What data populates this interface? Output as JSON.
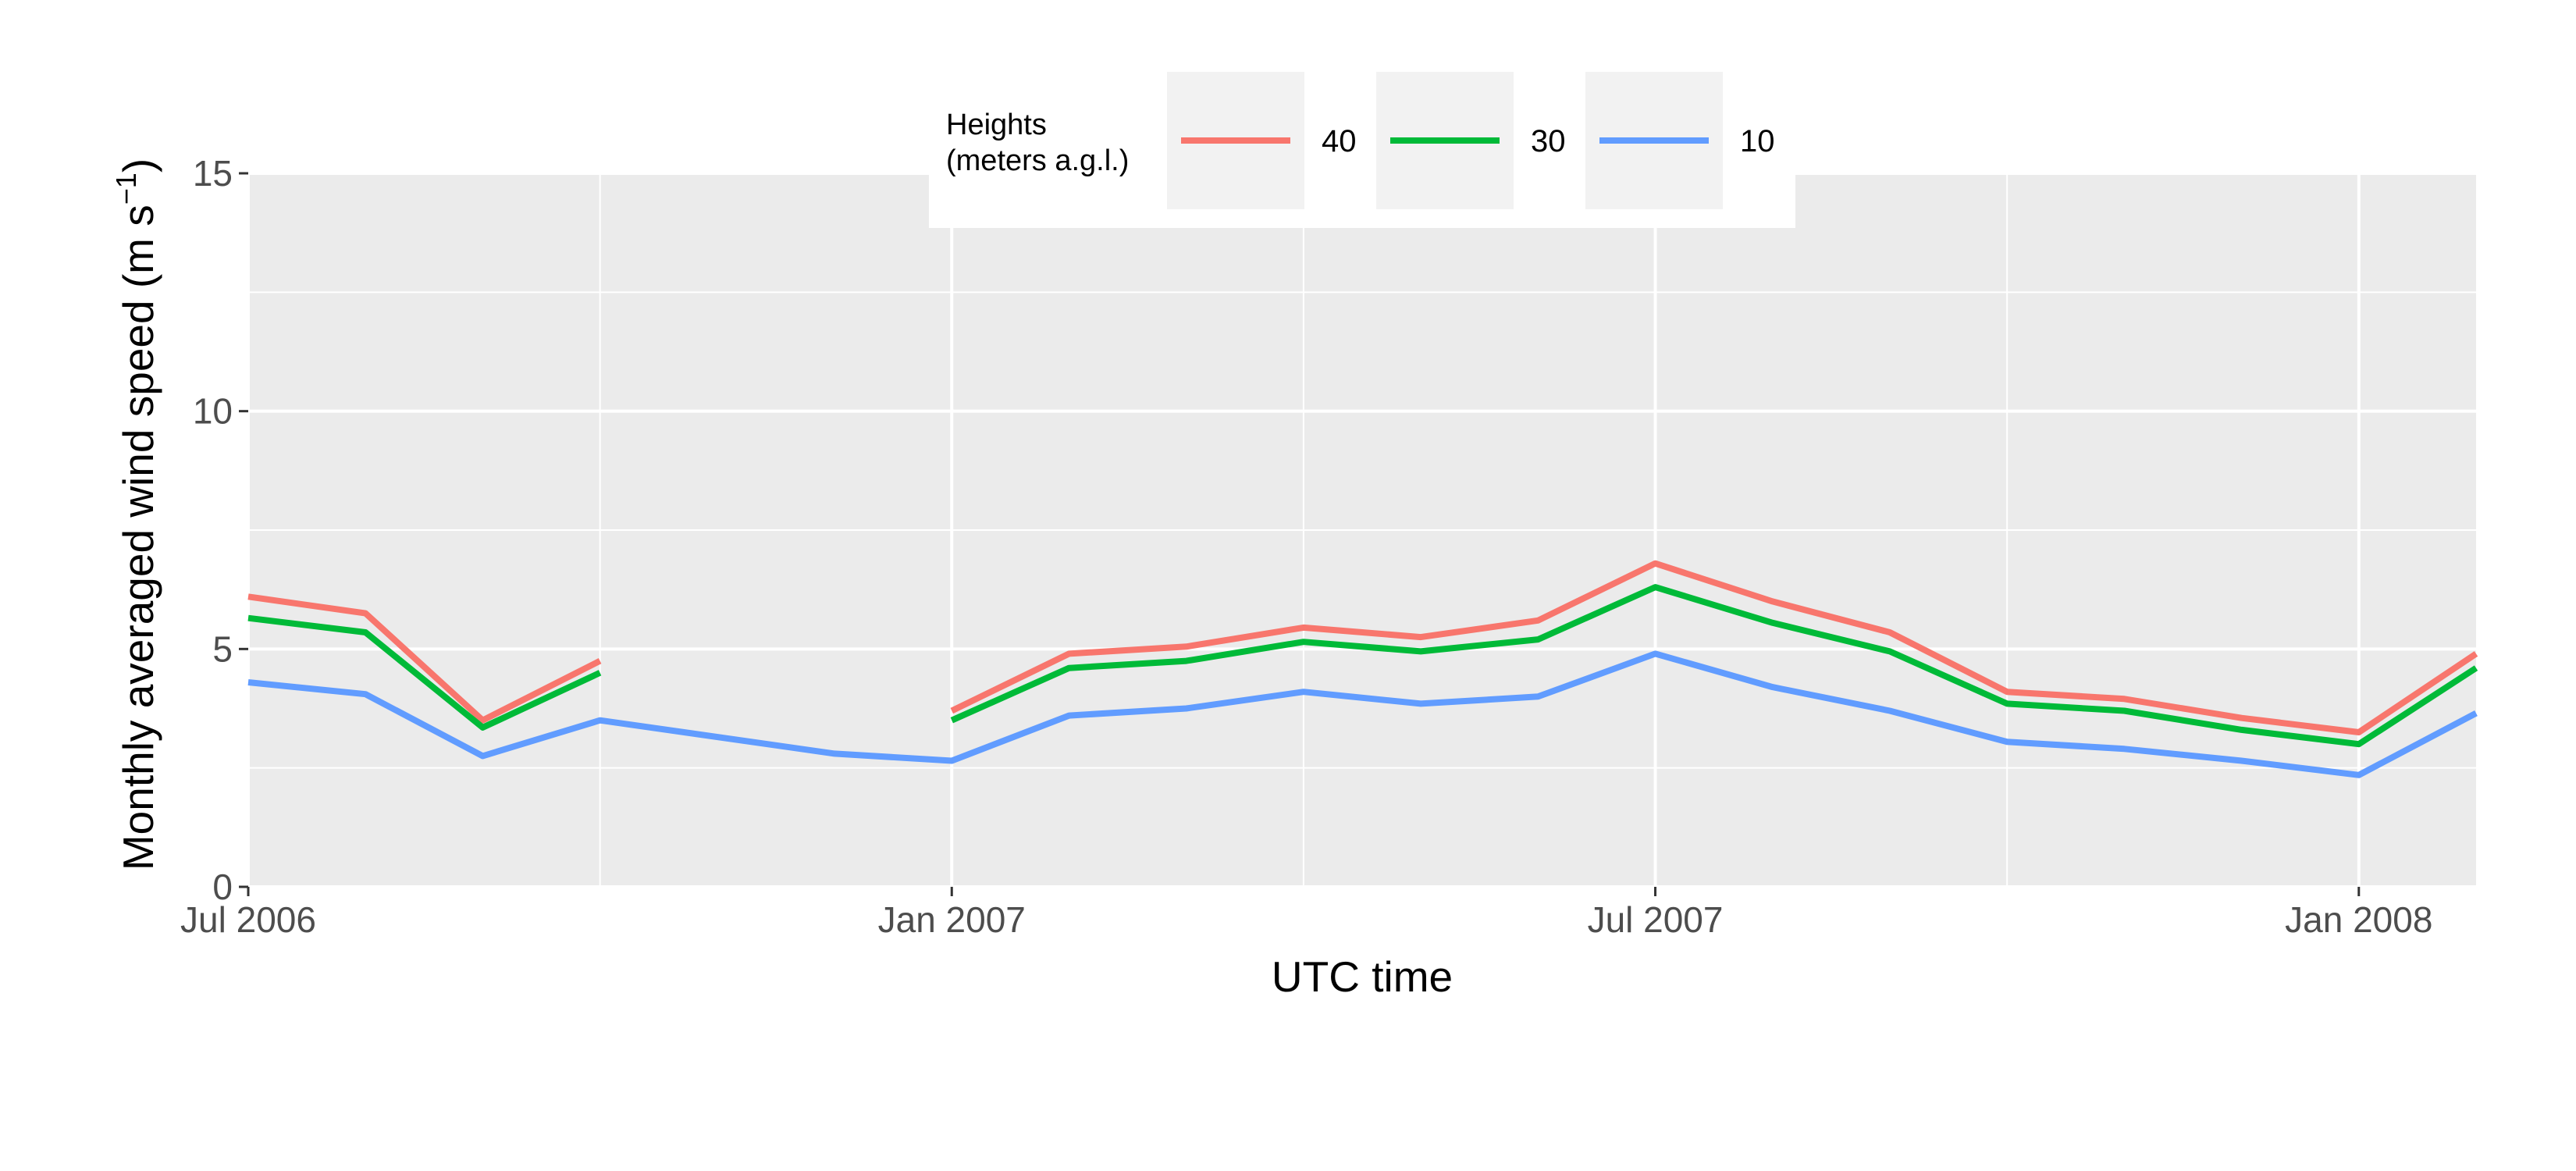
{
  "chart_data": {
    "type": "line",
    "title": "",
    "xlabel": "UTC time",
    "ylabel": "Monthly averaged wind speed (m s",
    "ylabel_unit_exponent": "−1",
    "ylabel_close": ")",
    "ylim": [
      0,
      15
    ],
    "yticks": [
      0,
      5,
      10,
      15
    ],
    "y_minor_gridlines": [
      2.5,
      7.5,
      12.5
    ],
    "xlim": [
      "2006-07",
      "2008-02"
    ],
    "xticks": [
      {
        "label": "Jul 2006",
        "date": "2006-07"
      },
      {
        "label": "Jan 2007",
        "date": "2007-01"
      },
      {
        "label": "Jul 2007",
        "date": "2007-07"
      },
      {
        "label": "Jan 2008",
        "date": "2008-01"
      }
    ],
    "x_minor_gridlines": [
      "2006-10",
      "2007-04",
      "2007-10"
    ],
    "grid": true,
    "legend": {
      "title_line1": "Heights",
      "title_line2": "(meters a.g.l.)",
      "placement": "top-center"
    },
    "series": [
      {
        "name": "40",
        "color": "#F8766D",
        "segments": [
          [
            {
              "x": "2006-07",
              "y": 6.1
            },
            {
              "x": "2006-08",
              "y": 5.75
            },
            {
              "x": "2006-09",
              "y": 3.5
            },
            {
              "x": "2006-10",
              "y": 4.75
            }
          ],
          [
            {
              "x": "2007-01",
              "y": 3.7
            },
            {
              "x": "2007-02",
              "y": 4.9
            },
            {
              "x": "2007-03",
              "y": 5.05
            },
            {
              "x": "2007-04",
              "y": 5.45
            },
            {
              "x": "2007-05",
              "y": 5.25
            },
            {
              "x": "2007-06",
              "y": 5.6
            },
            {
              "x": "2007-07",
              "y": 6.8
            },
            {
              "x": "2007-08",
              "y": 6.0
            },
            {
              "x": "2007-09",
              "y": 5.35
            },
            {
              "x": "2007-10",
              "y": 4.1
            },
            {
              "x": "2007-11",
              "y": 3.95
            },
            {
              "x": "2007-12",
              "y": 3.55
            },
            {
              "x": "2008-01",
              "y": 3.25
            },
            {
              "x": "2008-02",
              "y": 4.9
            }
          ]
        ]
      },
      {
        "name": "30",
        "color": "#00BA38",
        "segments": [
          [
            {
              "x": "2006-07",
              "y": 5.65
            },
            {
              "x": "2006-08",
              "y": 5.35
            },
            {
              "x": "2006-09",
              "y": 3.35
            },
            {
              "x": "2006-10",
              "y": 4.5
            }
          ],
          [
            {
              "x": "2007-01",
              "y": 3.5
            },
            {
              "x": "2007-02",
              "y": 4.6
            },
            {
              "x": "2007-03",
              "y": 4.75
            },
            {
              "x": "2007-04",
              "y": 5.15
            },
            {
              "x": "2007-05",
              "y": 4.95
            },
            {
              "x": "2007-06",
              "y": 5.2
            },
            {
              "x": "2007-07",
              "y": 6.3
            },
            {
              "x": "2007-08",
              "y": 5.55
            },
            {
              "x": "2007-09",
              "y": 4.95
            },
            {
              "x": "2007-10",
              "y": 3.85
            },
            {
              "x": "2007-11",
              "y": 3.7
            },
            {
              "x": "2007-12",
              "y": 3.3
            },
            {
              "x": "2008-01",
              "y": 3.0
            },
            {
              "x": "2008-02",
              "y": 4.6
            }
          ]
        ]
      },
      {
        "name": "10",
        "color": "#619CFF",
        "segments": [
          [
            {
              "x": "2006-07",
              "y": 4.3
            },
            {
              "x": "2006-08",
              "y": 4.05
            },
            {
              "x": "2006-09",
              "y": 2.75
            },
            {
              "x": "2006-10",
              "y": 3.5
            },
            {
              "x": "2006-12",
              "y": 2.8
            },
            {
              "x": "2007-01",
              "y": 2.65
            },
            {
              "x": "2007-02",
              "y": 3.6
            },
            {
              "x": "2007-03",
              "y": 3.75
            },
            {
              "x": "2007-04",
              "y": 4.1
            },
            {
              "x": "2007-05",
              "y": 3.85
            },
            {
              "x": "2007-06",
              "y": 4.0
            },
            {
              "x": "2007-07",
              "y": 4.9
            },
            {
              "x": "2007-08",
              "y": 4.2
            },
            {
              "x": "2007-09",
              "y": 3.7
            },
            {
              "x": "2007-10",
              "y": 3.05
            },
            {
              "x": "2007-11",
              "y": 2.9
            },
            {
              "x": "2007-12",
              "y": 2.65
            },
            {
              "x": "2008-01",
              "y": 2.35
            },
            {
              "x": "2008-02",
              "y": 3.65
            }
          ]
        ]
      }
    ]
  }
}
